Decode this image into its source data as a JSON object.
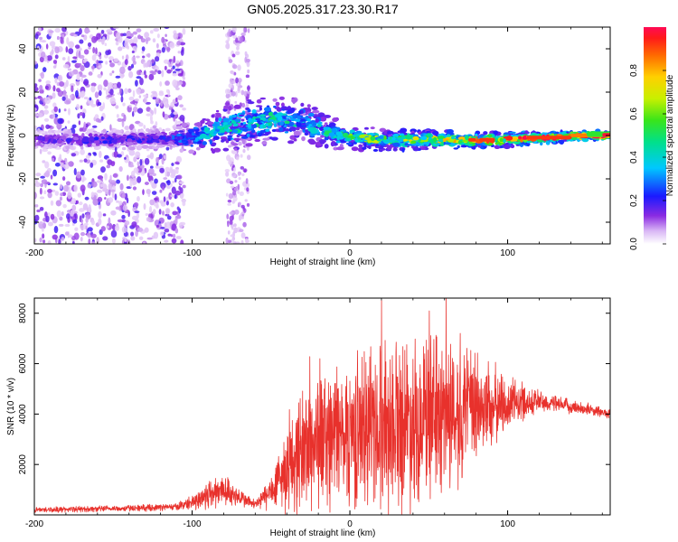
{
  "title": "GN05.2025.317.23.30.R17",
  "chart_data": [
    {
      "type": "heatmap",
      "name": "spectrogram",
      "xlabel": "Height of straight line (km)",
      "ylabel": "Frequency (Hz)",
      "xlim": [
        -200,
        165
      ],
      "ylim": [
        -50,
        50
      ],
      "xticks": [
        -200,
        -100,
        0,
        100
      ],
      "yticks": [
        -40,
        -20,
        0,
        20,
        40
      ],
      "colorbar": {
        "label": "Normalized spectral amplitude",
        "range": [
          0,
          1
        ],
        "ticks": [
          0.0,
          0.2,
          0.4,
          0.6,
          0.8
        ],
        "tick_labels": [
          "0.0",
          "0.2",
          "0.4",
          "0.6",
          "0.8"
        ]
      },
      "ridge": {
        "x": [
          -200,
          -150,
          -120,
          -100,
          -80,
          -60,
          -45,
          -30,
          -15,
          0,
          25,
          50,
          75,
          100,
          125,
          150,
          165
        ],
        "freq": [
          -2,
          -2,
          -1.5,
          -1,
          3,
          6,
          8,
          6,
          2,
          -1,
          -2,
          -2,
          -2,
          -2,
          -1,
          0,
          0
        ],
        "amplitude": [
          0.15,
          0.2,
          0.2,
          0.35,
          0.45,
          0.45,
          0.45,
          0.4,
          0.45,
          0.5,
          0.55,
          0.6,
          0.7,
          0.75,
          0.85,
          0.95,
          1.0
        ]
      }
    },
    {
      "type": "line",
      "name": "snr",
      "xlabel": "Height of straight line (km)",
      "ylabel": "SNR (10 * v/v)",
      "xlim": [
        -200,
        165
      ],
      "ylim": [
        0,
        8600
      ],
      "xticks": [
        -200,
        -100,
        0,
        100
      ],
      "yticks": [
        2000,
        4000,
        6000,
        8000
      ],
      "color": "#e8312c",
      "envelope": {
        "x": [
          -200,
          -150,
          -110,
          -100,
          -90,
          -80,
          -70,
          -60,
          -50,
          -40,
          -30,
          -20,
          -10,
          0,
          10,
          20,
          30,
          40,
          50,
          60,
          70,
          80,
          90,
          100,
          110,
          120,
          130,
          140,
          150,
          165
        ],
        "mean": [
          200,
          250,
          320,
          500,
          800,
          1000,
          700,
          400,
          900,
          1800,
          2600,
          3000,
          3200,
          3300,
          3400,
          3600,
          3800,
          3800,
          3900,
          4000,
          4100,
          4200,
          4300,
          4400,
          4500,
          4500,
          4400,
          4300,
          4200,
          4000
        ],
        "spread": [
          120,
          130,
          150,
          300,
          700,
          700,
          400,
          200,
          800,
          1800,
          2800,
          3000,
          3000,
          3200,
          3500,
          3600,
          3800,
          3600,
          3500,
          3400,
          3000,
          2500,
          1800,
          1200,
          800,
          500,
          350,
          300,
          250,
          200
        ]
      },
      "peaks": [
        {
          "x": 20,
          "y": 8500
        },
        {
          "x": 61,
          "y": 8600
        },
        {
          "x": -19,
          "y": 6200
        },
        {
          "x": 70,
          "y": 7200
        }
      ]
    }
  ]
}
